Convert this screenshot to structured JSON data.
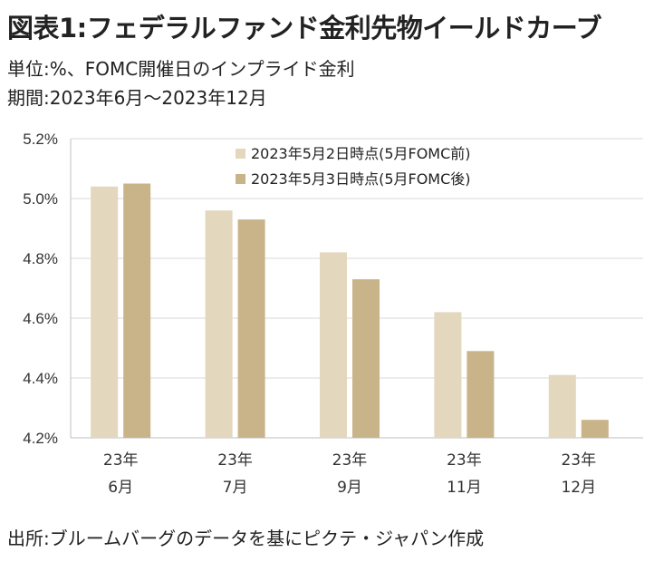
{
  "header": {
    "title": "図表1:フェデラルファンド金利先物イールドカーブ",
    "unit_line": "単位:%、FOMC開催日のインプライド金利",
    "period_line": "期間:2023年6月～2023年12月"
  },
  "footer": {
    "source": "出所:ブルームバーグのデータを基にピクテ・ジャパン作成"
  },
  "chart_data": {
    "type": "bar",
    "categories": [
      [
        "23年",
        "6月"
      ],
      [
        "23年",
        "7月"
      ],
      [
        "23年",
        "9月"
      ],
      [
        "23年",
        "11月"
      ],
      [
        "23年",
        "12月"
      ]
    ],
    "series": [
      {
        "name": "2023年5月2日時点(5月FOMC前)",
        "values": [
          5.04,
          4.96,
          4.82,
          4.62,
          4.41
        ],
        "color": "#e3d7bd"
      },
      {
        "name": "2023年5月3日時点(5月FOMC後)",
        "values": [
          5.05,
          4.93,
          4.73,
          4.49,
          4.26
        ],
        "color": "#c9b48a"
      }
    ],
    "ylim": [
      4.2,
      5.2
    ],
    "yticks": [
      "4.2%",
      "4.4%",
      "4.6%",
      "4.8%",
      "5.0%",
      "5.2%"
    ],
    "ytick_values": [
      4.2,
      4.4,
      4.6,
      4.8,
      5.0,
      5.2
    ],
    "grid": "horizontal",
    "gridline_color": "#d9d9d9",
    "axis_color": "#bfbfbf",
    "legend_position": "top-center"
  }
}
